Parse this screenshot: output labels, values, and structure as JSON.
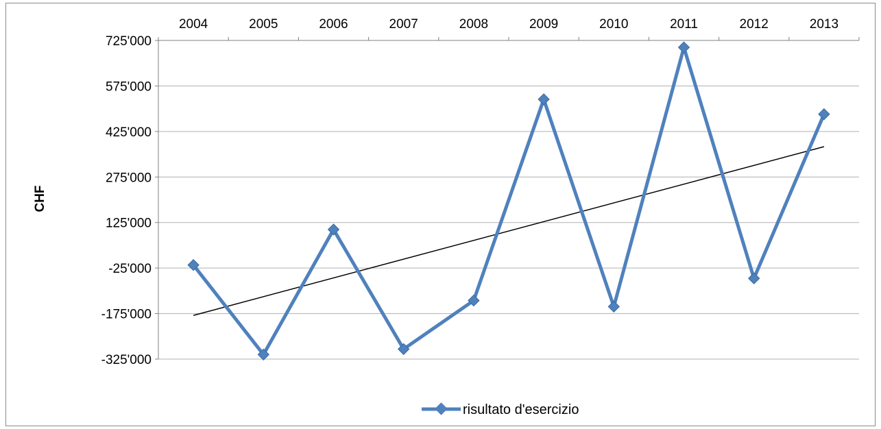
{
  "chart_data": {
    "type": "line",
    "title": "",
    "xlabel": "",
    "ylabel": "CHF",
    "categories": [
      "2004",
      "2005",
      "2006",
      "2007",
      "2008",
      "2009",
      "2010",
      "2011",
      "2012",
      "2013"
    ],
    "x_axis_position": "top",
    "y_ticks": [
      -325000,
      -175000,
      -25000,
      125000,
      275000,
      425000,
      575000,
      725000
    ],
    "y_tick_labels": [
      "-325'000",
      "-175'000",
      "-25'000",
      "125'000",
      "275'000",
      "425'000",
      "575'000",
      "725'000"
    ],
    "ylim": [
      -325000,
      725000
    ],
    "grid": "horizontal",
    "series": [
      {
        "name": "risultato d'esercizio",
        "color": "#4F81BD",
        "marker": "diamond",
        "values": [
          -15000,
          -310000,
          102000,
          -292000,
          -132000,
          531000,
          -152000,
          702000,
          -59000,
          482000
        ]
      }
    ],
    "trendline": {
      "type": "linear",
      "color": "#000000",
      "start": -181000,
      "end": 375000
    },
    "legend": {
      "position": "bottom",
      "label": "risultato d'esercizio"
    }
  }
}
